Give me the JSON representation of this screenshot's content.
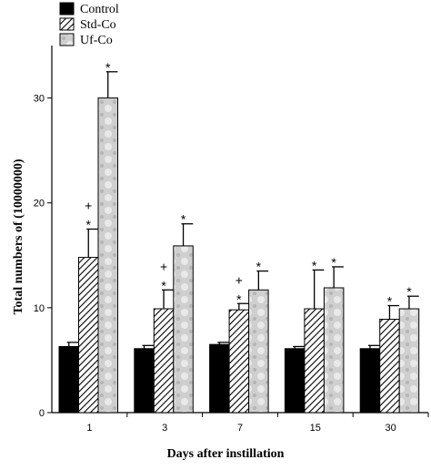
{
  "chart_data": {
    "type": "bar",
    "title": "",
    "xlabel": "Days after instillation",
    "ylabel": "Total numbers of  (10000000)",
    "categories": [
      "1",
      "3",
      "7",
      "15",
      "30"
    ],
    "ylim": [
      0,
      35
    ],
    "yticks": [
      "0",
      "10",
      "20",
      "30"
    ],
    "legend_position": "top-left",
    "series": [
      {
        "name": "Control",
        "values": [
          6.3,
          6.1,
          6.5,
          6.1,
          6.1
        ],
        "errors": [
          0.4,
          0.3,
          0.2,
          0.2,
          0.3
        ],
        "pattern": "solid",
        "color": "#000000",
        "markers": [
          "",
          "",
          "",
          "",
          ""
        ]
      },
      {
        "name": "Std-Co",
        "values": [
          14.8,
          9.9,
          9.8,
          9.9,
          8.9
        ],
        "errors": [
          2.7,
          1.8,
          0.6,
          3.7,
          1.3
        ],
        "pattern": "hatched",
        "color": "#000000",
        "markers": [
          "+\n*",
          "+\n*",
          "+\n*",
          "*",
          "*"
        ]
      },
      {
        "name": "Uf-Co",
        "values": [
          30.0,
          15.9,
          11.7,
          11.9,
          9.9
        ],
        "errors": [
          2.5,
          2.1,
          1.8,
          2.0,
          1.2
        ],
        "pattern": "dotted-gray",
        "color": "#c8c8c8",
        "markers": [
          "*",
          "*",
          "*",
          "*",
          "*"
        ]
      }
    ]
  }
}
